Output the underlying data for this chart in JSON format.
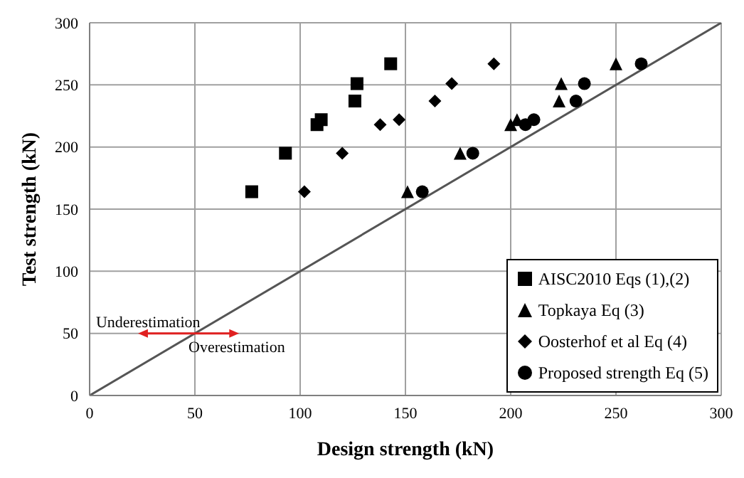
{
  "chart_data": {
    "type": "scatter",
    "xlabel": "Design strength (kN)",
    "ylabel": "Test strength (kN)",
    "xlim": [
      0,
      300
    ],
    "ylim": [
      0,
      300
    ],
    "xticks": [
      0,
      50,
      100,
      150,
      200,
      250,
      300
    ],
    "yticks": [
      0,
      50,
      100,
      150,
      200,
      250,
      300
    ],
    "grid": true,
    "legend": "bottom right",
    "series": [
      {
        "name": "AISC2010 Eqs (1),(2)",
        "color": "#000000",
        "marker": "square",
        "x": [
          77,
          93,
          108,
          110,
          126,
          127,
          143
        ],
        "values": [
          164,
          195,
          218,
          222,
          237,
          251,
          267
        ]
      },
      {
        "name": "Topkaya Eq (3)",
        "color": "#000000",
        "marker": "triangle",
        "x": [
          151,
          176,
          200,
          203,
          223,
          224,
          250
        ],
        "values": [
          164,
          195,
          218,
          222,
          237,
          251,
          267
        ]
      },
      {
        "name": "Oosterhof et al Eq (4)",
        "color": "#000000",
        "marker": "diamond",
        "x": [
          102,
          120,
          138,
          147,
          164,
          172,
          192
        ],
        "values": [
          164,
          195,
          218,
          222,
          237,
          251,
          267
        ]
      },
      {
        "name": "Proposed strength Eq (5)",
        "color": "#000000",
        "marker": "circle",
        "x": [
          158,
          182,
          207,
          211,
          231,
          235,
          262
        ],
        "values": [
          164,
          195,
          218,
          222,
          237,
          251,
          267
        ]
      },
      {
        "type": "line",
        "color": "#555555",
        "x": [
          0,
          300
        ],
        "values": [
          0,
          300
        ]
      }
    ],
    "annotations": [
      "Underestimation",
      "Overestimation"
    ]
  }
}
